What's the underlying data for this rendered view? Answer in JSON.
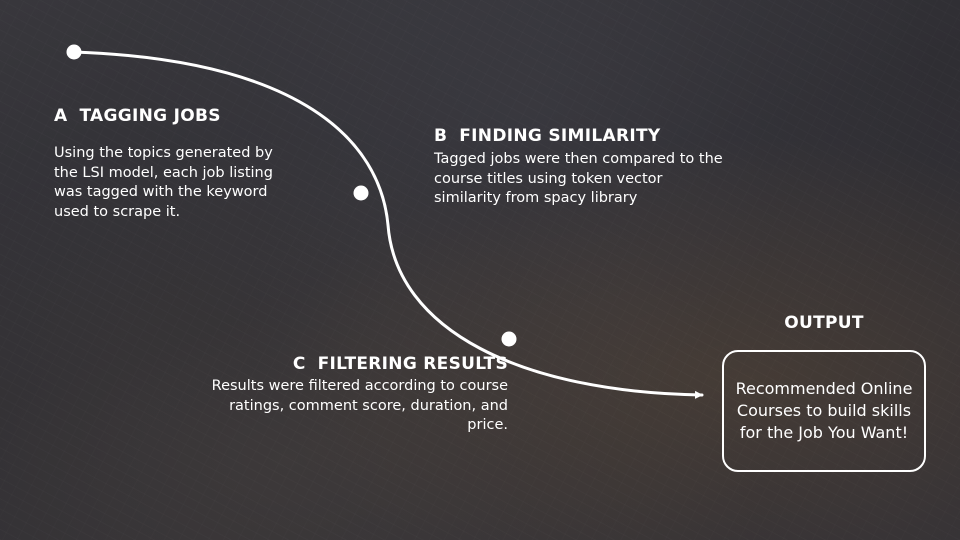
{
  "steps": {
    "a": {
      "letter": "A",
      "title": "TAGGING JOBS",
      "description": "Using the topics generated by the LSI model, each job listing was tagged with the keyword used to scrape it."
    },
    "b": {
      "letter": "B",
      "title": "FINDING SIMILARITY",
      "description": "Tagged jobs were then compared to the course titles using token vector similarity from spacy library"
    },
    "c": {
      "letter": "C",
      "title": "FILTERING RESULTS",
      "description": "Results were filtered according to course ratings, comment score, duration, and price."
    }
  },
  "output": {
    "title": "OUTPUT",
    "text": "Recommended Online Courses to build skills for the Job You Want!"
  },
  "colors": {
    "background": "#2e2d31",
    "foreground": "#ffffff"
  }
}
